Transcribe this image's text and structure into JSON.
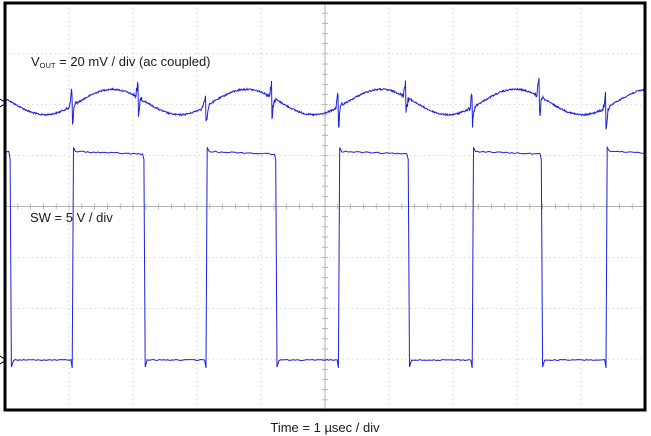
{
  "chart_data": {
    "type": "line",
    "grid": true,
    "divisions": {
      "x": 10,
      "y": 8
    },
    "trace_color": "#1f1fe0",
    "xlabel": "Time = 1 µsec / div",
    "time_per_div_us": 1,
    "series": [
      {
        "label_main": "V",
        "label_sub": "OUT",
        "label_rest": " = 20 mV / div (ac coupled)",
        "scale": "20 mV/div",
        "coupling": "ac",
        "ripple_pk_pk_mV": 10,
        "period_us": 2.1,
        "spike_times_us": [
          1.05,
          2.08,
          3.14,
          4.17,
          5.21,
          6.26,
          7.3,
          8.35,
          9.39
        ]
      },
      {
        "label_text": "SW = 5 V / div",
        "scale": "5 V/div",
        "high_V": 20.5,
        "low_V": 0,
        "period_us": 2.1,
        "rising_edges_us": [
          1.05,
          3.14,
          5.21,
          7.3,
          9.39
        ],
        "falling_edges_us": [
          0.08,
          2.17,
          4.23,
          6.3,
          8.38
        ]
      }
    ]
  }
}
